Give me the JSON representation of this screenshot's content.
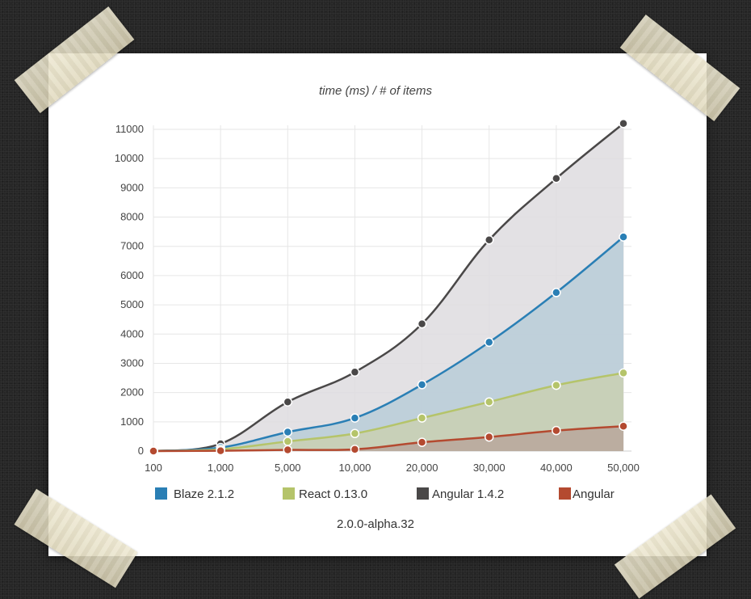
{
  "chart_data": {
    "type": "area",
    "title": "time (ms) / # of items",
    "xlabel": "",
    "ylabel": "",
    "ylim": [
      0,
      11000
    ],
    "yticks": [
      0,
      1000,
      2000,
      3000,
      4000,
      5000,
      6000,
      7000,
      8000,
      9000,
      10000,
      11000
    ],
    "categories": [
      "100",
      "1,000",
      "5,000",
      "10,000",
      "20,000",
      "30,000",
      "40,000",
      "50,000"
    ],
    "grid": true,
    "legend_position": "bottom",
    "series": [
      {
        "name": "Angular 1.4.2",
        "color": "#4a4848",
        "fill": "#dedcdf",
        "values": [
          0,
          250,
          1680,
          2700,
          4350,
          7220,
          9320,
          11200
        ]
      },
      {
        "name": "Blaze 2.1.2",
        "color": "#2a7fb5",
        "fill": "#b8ccd8",
        "values": [
          0,
          120,
          650,
          1130,
          2270,
          3720,
          5420,
          7320
        ]
      },
      {
        "name": "React 0.13.0",
        "color": "#b5c46a",
        "fill": "#c9d0b2",
        "values": [
          0,
          60,
          330,
          600,
          1130,
          1680,
          2250,
          2670
        ]
      },
      {
        "name": "Angular 2.0.0-alpha.32",
        "color": "#b44a30",
        "fill": "#b8a79b",
        "values": [
          0,
          10,
          40,
          60,
          300,
          480,
          700,
          850
        ]
      }
    ]
  },
  "legend": [
    {
      "label": "Blaze 2.1.2",
      "color": "#2a7fb5"
    },
    {
      "label": "React 0.13.0",
      "color": "#b5c46a"
    },
    {
      "label": "Angular 1.4.2",
      "color": "#4a4848"
    },
    {
      "label": "Angular",
      "color": "#b44a30"
    }
  ],
  "legend_extra": "2.0.0-alpha.32"
}
